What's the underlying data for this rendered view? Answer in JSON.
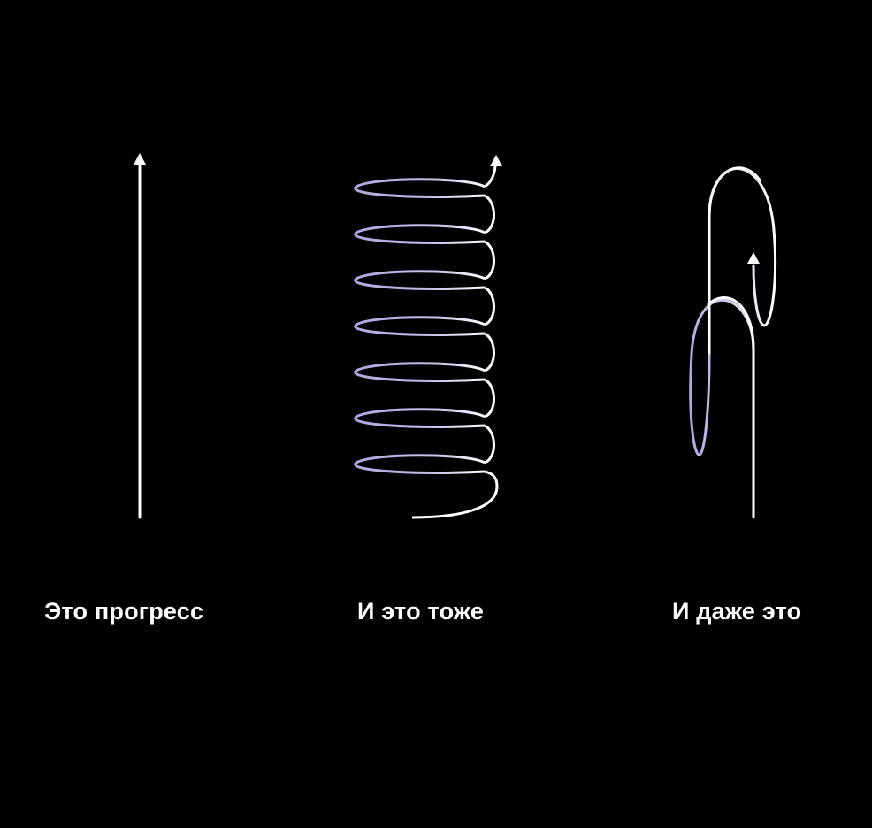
{
  "colors": {
    "background": "#000000",
    "line": "#ffffff",
    "loop_tint": "#b3a6e0"
  },
  "panels": [
    {
      "caption": "Это прогресс",
      "icon": "straight-up-arrow-icon"
    },
    {
      "caption": "И это тоже",
      "icon": "spiral-up-arrow-icon"
    },
    {
      "caption": "И даже это",
      "icon": "looping-up-arrow-icon"
    }
  ]
}
